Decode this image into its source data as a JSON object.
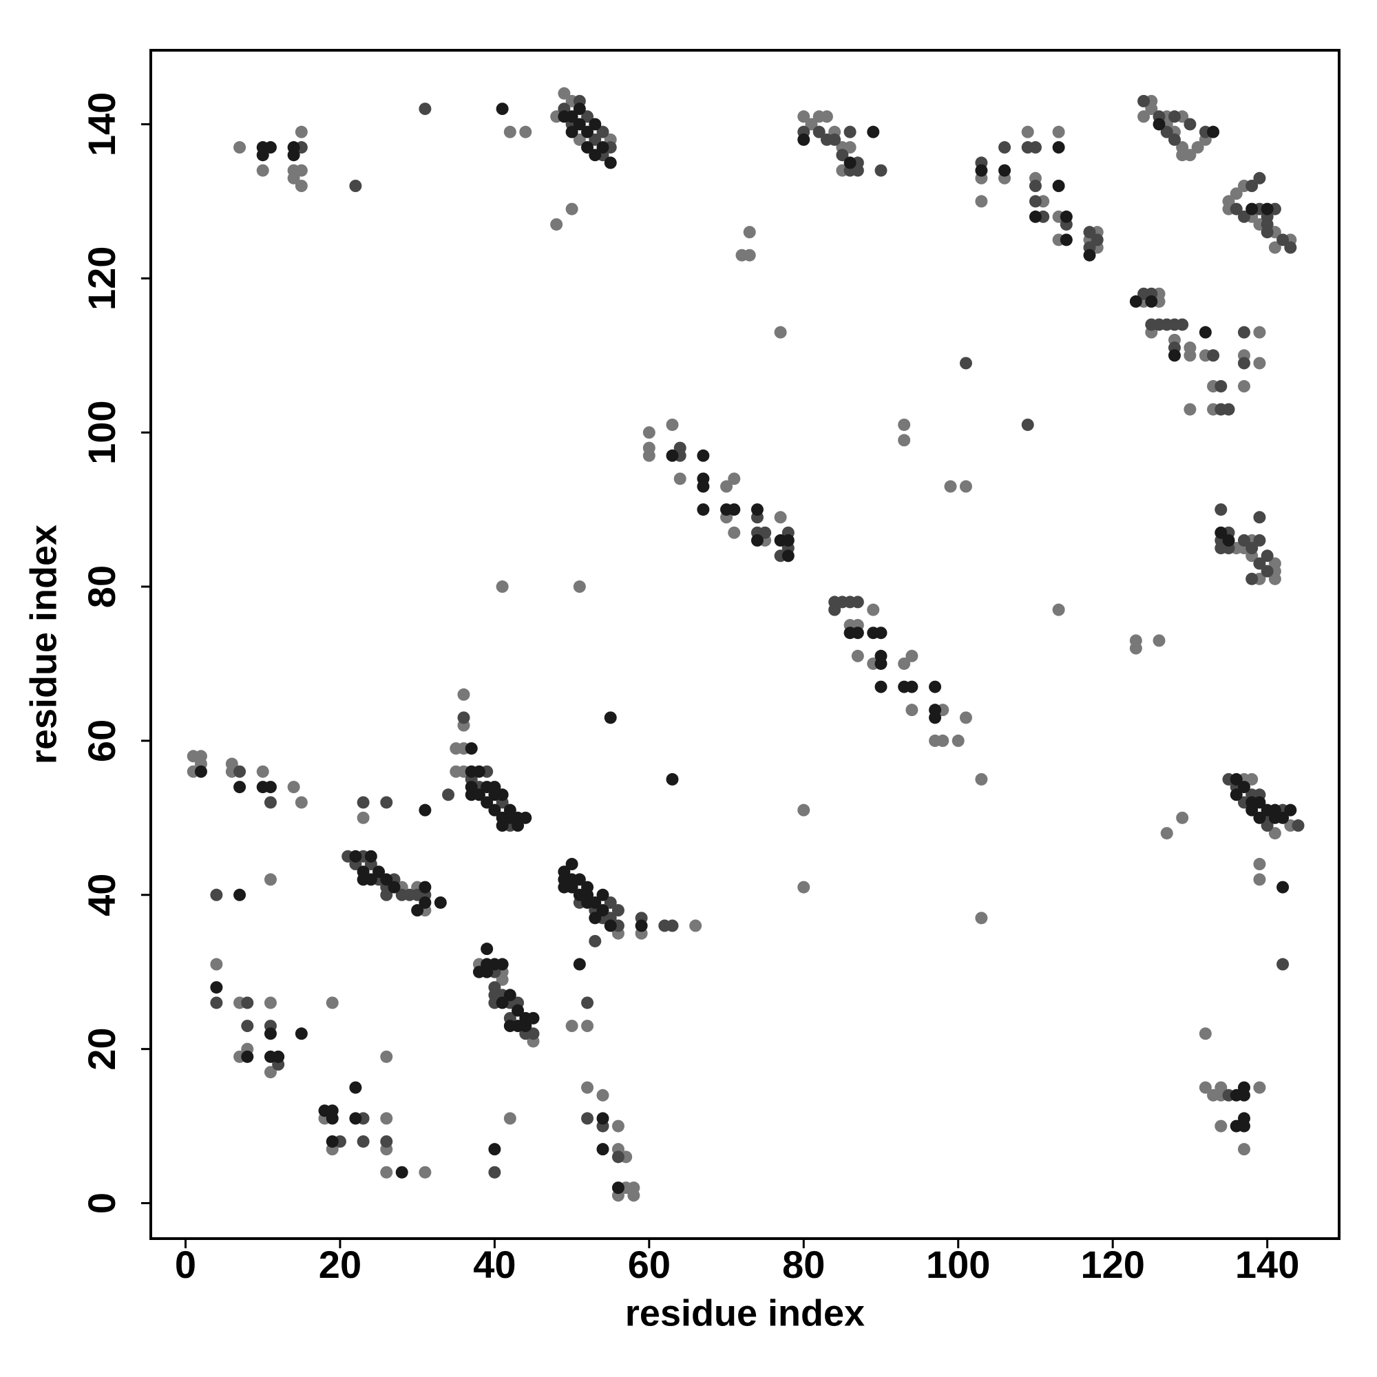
{
  "chart_data": {
    "type": "scatter",
    "xlabel": "residue index",
    "ylabel": "residue index",
    "xlim": [
      -4.5,
      149.3
    ],
    "ylim": [
      -4.6,
      149.6
    ],
    "xticks": [
      0,
      20,
      40,
      60,
      80,
      100,
      120,
      140
    ],
    "yticks": [
      0,
      20,
      40,
      60,
      80,
      100,
      120,
      140
    ],
    "series": [
      {
        "color": "#787878",
        "x": [
          7,
          10,
          15,
          14,
          14,
          15,
          15,
          42,
          44,
          48,
          49,
          50,
          51,
          55,
          48,
          50,
          80,
          81,
          82,
          83,
          84,
          85,
          85,
          86,
          72,
          73,
          73,
          77,
          103,
          103,
          106,
          109,
          110,
          111,
          113,
          113,
          113,
          117,
          118,
          118,
          124,
          125,
          125,
          127,
          127,
          128,
          129,
          129,
          129,
          130,
          131,
          132,
          135,
          135,
          136,
          137,
          138,
          139,
          141,
          141,
          143,
          124,
          125,
          126,
          126,
          128,
          130,
          130,
          130,
          132,
          133,
          133,
          137,
          137,
          139,
          139,
          60,
          60,
          60,
          63,
          64,
          70,
          70,
          71,
          71,
          75,
          77,
          93,
          93,
          99,
          101,
          136,
          137,
          138,
          138,
          139,
          141,
          141,
          141,
          41,
          51,
          113,
          123,
          123,
          126,
          86,
          87,
          87,
          89,
          89,
          93,
          94,
          94,
          97,
          98,
          98,
          100,
          101,
          103,
          1,
          1,
          2,
          2,
          6,
          6,
          10,
          14,
          15,
          23,
          36,
          36,
          36,
          36,
          35,
          35,
          137,
          138,
          141,
          143,
          127,
          129,
          80,
          80,
          103,
          139,
          139,
          28,
          30,
          31,
          11,
          56,
          59,
          66,
          50,
          52,
          38,
          41,
          41,
          45,
          4,
          7,
          11,
          8,
          7,
          11,
          19,
          26,
          132,
          18,
          19,
          26,
          26,
          26,
          31,
          42,
          52,
          54,
          56,
          56,
          56,
          57,
          57,
          58,
          58,
          132,
          133,
          134,
          134,
          139,
          134,
          137
        ],
        "values": [
          137,
          134,
          139,
          134,
          133,
          134,
          132,
          139,
          139,
          141,
          144,
          143,
          138,
          138,
          127,
          129,
          141,
          140,
          141,
          141,
          139,
          137,
          134,
          137,
          123,
          123,
          126,
          113,
          133,
          130,
          133,
          139,
          133,
          130,
          139,
          128,
          125,
          125,
          126,
          124,
          141,
          143,
          142,
          140,
          141,
          139,
          141,
          137,
          136,
          136,
          137,
          138,
          130,
          129,
          131,
          132,
          128,
          127,
          126,
          124,
          125,
          117,
          113,
          118,
          117,
          112,
          111,
          110,
          103,
          110,
          106,
          103,
          110,
          106,
          113,
          109,
          100,
          98,
          97,
          101,
          94,
          93,
          89,
          94,
          87,
          86,
          89,
          101,
          99,
          93,
          93,
          85,
          85,
          86,
          84,
          81,
          83,
          82,
          81,
          80,
          80,
          77,
          73,
          72,
          73,
          75,
          75,
          71,
          77,
          70,
          70,
          71,
          64,
          60,
          64,
          60,
          60,
          63,
          55,
          58,
          56,
          58,
          57,
          57,
          56,
          56,
          54,
          52,
          50,
          66,
          62,
          59,
          56,
          59,
          56,
          55,
          55,
          48,
          49,
          48,
          50,
          51,
          41,
          37,
          44,
          42,
          41,
          41,
          38,
          42,
          35,
          35,
          36,
          23,
          23,
          31,
          30,
          29,
          21,
          31,
          26,
          26,
          20,
          19,
          17,
          26,
          19,
          22,
          11,
          7,
          11,
          7,
          4,
          4,
          11,
          15,
          14,
          10,
          7,
          1,
          6,
          2,
          2,
          1,
          15,
          14,
          15,
          14,
          15,
          10,
          7
        ]
      },
      {
        "color": "#474747",
        "x": [
          15,
          22,
          31,
          49,
          50,
          51,
          52,
          53,
          54,
          54,
          55,
          80,
          82,
          83,
          84,
          85,
          86,
          86,
          87,
          87,
          90,
          103,
          106,
          109,
          110,
          110,
          110,
          111,
          114,
          117,
          117,
          118,
          124,
          126,
          127,
          128,
          128,
          130,
          132,
          136,
          137,
          138,
          139,
          139,
          140,
          140,
          140,
          141,
          142,
          143,
          124,
          125,
          125,
          126,
          127,
          128,
          128,
          129,
          133,
          134,
          134,
          135,
          137,
          137,
          101,
          109,
          64,
          64,
          74,
          74,
          75,
          77,
          78,
          78,
          134,
          134,
          134,
          135,
          135,
          137,
          138,
          138,
          139,
          139,
          139,
          140,
          140,
          84,
          84,
          85,
          86,
          87,
          7,
          11,
          23,
          26,
          36,
          37,
          38,
          39,
          41,
          42,
          34,
          135,
          136,
          137,
          138,
          139,
          140,
          140,
          142,
          144,
          142,
          21,
          22,
          23,
          24,
          25,
          26,
          26,
          27,
          28,
          29,
          30,
          31,
          4,
          51,
          53,
          54,
          55,
          55,
          56,
          56,
          53,
          59,
          62,
          63,
          52,
          40,
          40,
          40,
          40,
          41,
          42,
          42,
          43,
          44,
          45,
          4,
          8,
          8,
          11,
          12,
          20,
          23,
          23,
          26,
          40,
          52,
          54,
          56,
          135
        ],
        "values": [
          137,
          132,
          142,
          142,
          140,
          143,
          141,
          138,
          139,
          136,
          137,
          139,
          139,
          138,
          138,
          136,
          139,
          134,
          135,
          134,
          134,
          135,
          137,
          137,
          137,
          132,
          130,
          128,
          127,
          126,
          124,
          125,
          143,
          141,
          139,
          141,
          138,
          140,
          139,
          129,
          128,
          132,
          133,
          129,
          128,
          127,
          126,
          129,
          125,
          124,
          118,
          118,
          114,
          114,
          114,
          114,
          111,
          114,
          110,
          106,
          103,
          103,
          113,
          109,
          109,
          101,
          98,
          97,
          89,
          87,
          87,
          84,
          87,
          85,
          90,
          86,
          85,
          87,
          85,
          86,
          85,
          81,
          89,
          86,
          83,
          84,
          82,
          78,
          77,
          78,
          78,
          78,
          56,
          52,
          52,
          52,
          63,
          55,
          54,
          56,
          52,
          49,
          53,
          55,
          54,
          52,
          53,
          53,
          50,
          49,
          51,
          49,
          31,
          45,
          44,
          45,
          44,
          42,
          41,
          40,
          42,
          40,
          40,
          40,
          40,
          40,
          39,
          38,
          37,
          39,
          37,
          38,
          36,
          34,
          37,
          36,
          36,
          26,
          30,
          28,
          27,
          26,
          27,
          26,
          24,
          26,
          22,
          22,
          26,
          26,
          23,
          23,
          18,
          8,
          11,
          8,
          8,
          4,
          11,
          10,
          6,
          14
        ]
      },
      {
        "color": "#1a1a1a",
        "x": [
          10,
          10,
          11,
          14,
          14,
          41,
          49,
          50,
          50,
          51,
          51,
          52,
          52,
          53,
          53,
          54,
          55,
          80,
          86,
          89,
          103,
          106,
          110,
          113,
          113,
          114,
          114,
          117,
          133,
          126,
          138,
          140,
          123,
          125,
          128,
          132,
          63,
          67,
          67,
          67,
          67,
          70,
          71,
          74,
          74,
          77,
          78,
          78,
          134,
          135,
          86,
          87,
          89,
          90,
          90,
          90,
          90,
          93,
          94,
          97,
          97,
          97,
          55,
          63,
          2,
          7,
          10,
          11,
          31,
          37,
          37,
          37,
          37,
          38,
          38,
          39,
          39,
          40,
          40,
          40,
          41,
          41,
          41,
          42,
          42,
          43,
          43,
          44,
          136,
          136,
          137,
          138,
          138,
          139,
          139,
          140,
          141,
          141,
          142,
          143,
          142,
          22,
          23,
          23,
          24,
          24,
          25,
          26,
          27,
          30,
          31,
          31,
          33,
          7,
          49,
          49,
          49,
          50,
          50,
          50,
          51,
          51,
          52,
          52,
          52,
          53,
          53,
          54,
          54,
          55,
          59,
          51,
          38,
          39,
          39,
          39,
          40,
          41,
          41,
          42,
          42,
          43,
          43,
          44,
          44,
          45,
          4,
          8,
          11,
          11,
          12,
          15,
          19,
          19,
          18,
          19,
          22,
          22,
          28,
          40,
          54,
          54,
          56,
          136,
          137,
          137,
          136,
          137,
          137
        ],
        "values": [
          137,
          136,
          137,
          137,
          136,
          142,
          141,
          141,
          139,
          142,
          140,
          139,
          137,
          140,
          136,
          137,
          135,
          138,
          135,
          139,
          134,
          134,
          128,
          137,
          132,
          128,
          125,
          123,
          139,
          140,
          129,
          129,
          117,
          117,
          110,
          113,
          97,
          97,
          94,
          93,
          90,
          90,
          90,
          90,
          86,
          86,
          86,
          84,
          87,
          86,
          74,
          74,
          74,
          74,
          71,
          70,
          67,
          67,
          67,
          67,
          64,
          63,
          63,
          55,
          56,
          54,
          54,
          54,
          51,
          59,
          56,
          54,
          53,
          56,
          53,
          54,
          52,
          54,
          53,
          51,
          53,
          50,
          49,
          51,
          50,
          50,
          49,
          50,
          55,
          53,
          54,
          52,
          51,
          52,
          50,
          51,
          51,
          50,
          50,
          51,
          41,
          45,
          43,
          42,
          45,
          42,
          43,
          42,
          41,
          38,
          41,
          39,
          39,
          40,
          43,
          42,
          41,
          44,
          42,
          41,
          42,
          40,
          41,
          40,
          39,
          39,
          37,
          40,
          38,
          36,
          36,
          31,
          30,
          33,
          31,
          30,
          31,
          31,
          26,
          27,
          23,
          25,
          23,
          24,
          23,
          24,
          28,
          19,
          22,
          19,
          19,
          22,
          12,
          11,
          12,
          8,
          15,
          11,
          4,
          7,
          11,
          7,
          2,
          14,
          15,
          14,
          10,
          11,
          10
        ]
      }
    ]
  }
}
